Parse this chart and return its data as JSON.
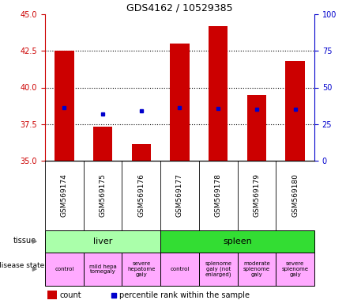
{
  "title": "GDS4162 / 10529385",
  "samples": [
    "GSM569174",
    "GSM569175",
    "GSM569176",
    "GSM569177",
    "GSM569178",
    "GSM569179",
    "GSM569180"
  ],
  "bar_tops": [
    42.5,
    37.3,
    36.15,
    43.0,
    44.2,
    39.5,
    41.8
  ],
  "bar_bottom": 35.0,
  "percentile_values": [
    38.6,
    38.2,
    38.4,
    38.6,
    38.55,
    38.5,
    38.5
  ],
  "ylim_left": [
    35,
    45
  ],
  "ylim_right": [
    0,
    100
  ],
  "yticks_left": [
    35,
    37.5,
    40,
    42.5,
    45
  ],
  "yticks_right": [
    0,
    25,
    50,
    75,
    100
  ],
  "bar_color": "#cc0000",
  "percentile_color": "#0000cc",
  "tissue_groups": [
    {
      "label": "liver",
      "start": 0,
      "end": 3,
      "color": "#aaffaa"
    },
    {
      "label": "spleen",
      "start": 3,
      "end": 7,
      "color": "#33dd33"
    }
  ],
  "disease_states": [
    {
      "label": "control",
      "start": 0,
      "end": 1,
      "color": "#ffaaff"
    },
    {
      "label": "mild hepa\ntomegaly",
      "start": 1,
      "end": 2,
      "color": "#ffaaff"
    },
    {
      "label": "severe\nhepatome\ngaly",
      "start": 2,
      "end": 3,
      "color": "#ffaaff"
    },
    {
      "label": "control",
      "start": 3,
      "end": 4,
      "color": "#ffaaff"
    },
    {
      "label": "splenome\ngaly (not\nenlarged)",
      "start": 4,
      "end": 5,
      "color": "#ffaaff"
    },
    {
      "label": "moderate\nsplenome\ngaly",
      "start": 5,
      "end": 6,
      "color": "#ffaaff"
    },
    {
      "label": "severe\nsplenome\ngaly",
      "start": 6,
      "end": 7,
      "color": "#ffaaff"
    }
  ],
  "xlabels_bg": "#cccccc",
  "background_color": "#ffffff",
  "left_axis_color": "#cc0000",
  "right_axis_color": "#0000cc",
  "bar_width": 0.5
}
